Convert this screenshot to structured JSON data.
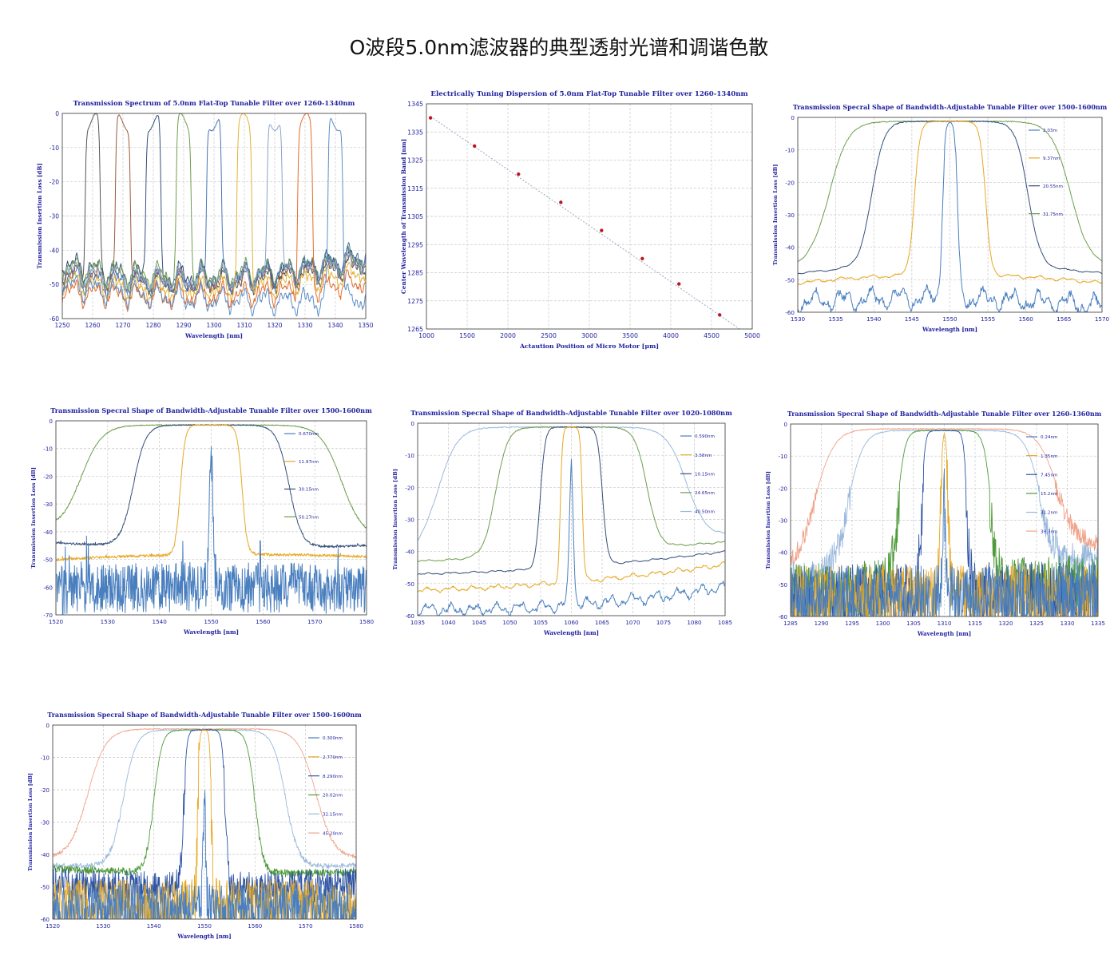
{
  "page": {
    "title": "O波段5.0nm滤波器的典型透射光谱和调谐色散"
  },
  "chart_data": [
    {
      "id": "c1",
      "type": "line",
      "title": "Transmission Spectrum of 5.0nm Flat-Top Tunable Filter over 1260-1340nm",
      "xlabel": "Wavelength [nm]",
      "ylabel": "Transmission Insertion Loss [dB]",
      "xlim": [
        1250,
        1350
      ],
      "ylim": [
        -60,
        0
      ],
      "xticks": [
        1250,
        1260,
        1270,
        1280,
        1290,
        1300,
        1310,
        1320,
        1330,
        1340,
        1350
      ],
      "yticks": [
        0,
        -10,
        -20,
        -30,
        -40,
        -50,
        -60
      ],
      "grid": true,
      "noise": "sinus",
      "series": [
        {
          "center": 1260,
          "fwhm": 5.0,
          "peak": -2.5,
          "floor_start": -46,
          "floor_mid": -54,
          "floor_end": -44,
          "color": "#555555"
        },
        {
          "center": 1270,
          "fwhm": 5.0,
          "peak": -2.5,
          "floor_start": -47,
          "floor_mid": -53,
          "floor_end": -43,
          "color": "#9b5a3c"
        },
        {
          "center": 1280,
          "fwhm": 5.0,
          "peak": -2.5,
          "floor_start": -44,
          "floor_mid": -52,
          "floor_end": -42,
          "color": "#35507a"
        },
        {
          "center": 1290,
          "fwhm": 5.0,
          "peak": -2.5,
          "floor_start": -45,
          "floor_mid": -51,
          "floor_end": -42,
          "color": "#6e9e4e"
        },
        {
          "center": 1300,
          "fwhm": 5.0,
          "peak": -2.5,
          "floor_start": -48,
          "floor_mid": -53,
          "floor_end": -41,
          "color": "#4a74b4"
        },
        {
          "center": 1310,
          "fwhm": 5.0,
          "peak": -2.5,
          "floor_start": -49,
          "floor_mid": -55,
          "floor_end": -46,
          "color": "#e3b236"
        },
        {
          "center": 1320,
          "fwhm": 5.0,
          "peak": -2.5,
          "floor_start": -46,
          "floor_mid": -52,
          "floor_end": -43,
          "color": "#8aa4c8"
        },
        {
          "center": 1330,
          "fwhm": 5.0,
          "peak": -2.5,
          "floor_start": -52,
          "floor_mid": -56,
          "floor_end": -49,
          "color": "#e46c2c"
        },
        {
          "center": 1340,
          "fwhm": 5.0,
          "peak": -2.5,
          "floor_start": -50,
          "floor_mid": -57,
          "floor_end": -54,
          "color": "#5d8fc6"
        }
      ]
    },
    {
      "id": "c2",
      "type": "scatter",
      "title": "Electrically Tuning Dispersion of 5.0nm Flat-Top Tunable Filter over 1260-1340nm",
      "xlabel": "Actaution Position of Micro Motor [μm]",
      "ylabel": "Center Wavelength of Transmission Band [nm]",
      "xlim": [
        1000,
        5000
      ],
      "ylim": [
        1265,
        1345
      ],
      "xticks": [
        1000,
        1500,
        2000,
        2500,
        3000,
        3500,
        4000,
        4500,
        5000
      ],
      "yticks": [
        1265,
        1275,
        1285,
        1295,
        1305,
        1315,
        1325,
        1335,
        1345
      ],
      "grid": true,
      "trendline": [
        [
          1050,
          1340.5
        ],
        [
          4880,
          1264.3
        ]
      ],
      "points": [
        [
          1050,
          1340
        ],
        [
          1590,
          1330
        ],
        [
          2130,
          1320
        ],
        [
          2650,
          1310
        ],
        [
          3150,
          1300
        ],
        [
          3650,
          1290
        ],
        [
          4100,
          1281
        ],
        [
          4600,
          1270
        ]
      ],
      "point_color": "#c0161f"
    },
    {
      "id": "c3",
      "type": "line",
      "title": "Transmission Specral Shape of Bandwidth-Adjustable Tunable Filter over 1500-1600nm",
      "xlabel": "Wavelength [nm]",
      "ylabel": "Transmission Insertion Loss [dB]",
      "xlim": [
        1530,
        1570
      ],
      "ylim": [
        -60,
        0
      ],
      "xticks": [
        1530,
        1535,
        1540,
        1545,
        1550,
        1555,
        1560,
        1565,
        1570
      ],
      "yticks": [
        0,
        -10,
        -20,
        -30,
        -40,
        -50,
        -60
      ],
      "grid": true,
      "noise": "sinus",
      "series": [
        {
          "name": "2.03m",
          "center": 1550,
          "fwhm": 2.03,
          "peak": -1.2,
          "floor_start": -57,
          "floor_mid": -54,
          "floor_end": -58,
          "color": "#4a7fbf",
          "noise_amp": 3.5
        },
        {
          "name": "9.37nm",
          "center": 1550,
          "fwhm": 9.37,
          "peak": -1.2,
          "floor_start": -51,
          "floor_mid": -46,
          "floor_end": -51,
          "color": "#e7a823",
          "noise_amp": 0.6
        },
        {
          "name": "20.55nm",
          "center": 1550,
          "fwhm": 20.55,
          "peak": -1.2,
          "floor_start": -48,
          "floor_mid": -43,
          "floor_end": -48,
          "color": "#35507a",
          "noise_amp": 0.3
        },
        {
          "name": "31.75nm",
          "center": 1550,
          "fwhm": 31.75,
          "peak": -1.2,
          "floor_start": -46,
          "floor_mid": -44,
          "floor_end": -46,
          "color": "#6e9e4e",
          "noise_amp": 0.3
        }
      ]
    },
    {
      "id": "c4",
      "type": "line",
      "title": "Transmission Specral Shape of Bandwidth-Adjustable Tunable Filter over 1500-1600nm",
      "xlabel": "Wavelength [nm]",
      "ylabel": "Transmission Insertion Loss [dB]",
      "xlim": [
        1520,
        1580
      ],
      "ylim": [
        -70,
        0
      ],
      "xticks": [
        1520,
        1530,
        1540,
        1550,
        1560,
        1570,
        1580
      ],
      "yticks": [
        0,
        -10,
        -20,
        -30,
        -40,
        -50,
        -60,
        -70
      ],
      "grid": true,
      "noise": "spiky",
      "series": [
        {
          "name": "0.670nm",
          "center": 1550,
          "fwhm": 0.67,
          "peak": -1.5,
          "floor_start": -61,
          "floor_mid": -59,
          "floor_end": -61,
          "color": "#4a7fbf",
          "noise_amp": 9
        },
        {
          "name": "11.97nm",
          "center": 1550,
          "fwhm": 11.97,
          "peak": -1.5,
          "floor_start": -50,
          "floor_mid": -47,
          "floor_end": -49,
          "color": "#e7a823",
          "noise_amp": 0.5
        },
        {
          "name": "30.15nm",
          "center": 1550,
          "fwhm": 30.15,
          "peak": -1.5,
          "floor_start": -44,
          "floor_mid": -47,
          "floor_end": -45,
          "color": "#35507a",
          "noise_amp": 0.4
        },
        {
          "name": "50.27nm",
          "center": 1550,
          "fwhm": 50.27,
          "peak": -1.5,
          "floor_start": -39,
          "floor_mid": -41,
          "floor_end": -42,
          "color": "#6e9e4e",
          "noise_amp": 0.3
        }
      ]
    },
    {
      "id": "c5",
      "type": "line",
      "title": "Transmission Specral Shape of Bandwidth-Adjustable Tunable Filter over 1020-1080nm",
      "xlabel": "Wavelength [nm]",
      "ylabel": "Transmission Insertion Loss [dB]",
      "xlim": [
        1035,
        1085
      ],
      "ylim": [
        -60,
        0
      ],
      "xticks": [
        1035,
        1040,
        1045,
        1050,
        1055,
        1060,
        1065,
        1070,
        1075,
        1080,
        1085
      ],
      "yticks": [
        0,
        -10,
        -20,
        -30,
        -40,
        -50,
        -60
      ],
      "grid": true,
      "noise": "sinus",
      "series": [
        {
          "name": "0.590nm",
          "center": 1060,
          "fwhm": 0.59,
          "peak": -1.2,
          "floor_start": -58,
          "floor_mid": -59,
          "floor_end": -51,
          "color": "#4a7fbf",
          "noise_amp": 2
        },
        {
          "name": "3.58nm",
          "center": 1060,
          "fwhm": 3.58,
          "peak": -1.2,
          "floor_start": -52,
          "floor_mid": -51,
          "floor_end": -44,
          "color": "#e7a823",
          "noise_amp": 0.8
        },
        {
          "name": "10.15nm",
          "center": 1060,
          "fwhm": 10.15,
          "peak": -1.2,
          "floor_start": -47,
          "floor_mid": -46,
          "floor_end": -40,
          "color": "#35507a",
          "noise_amp": 0.3
        },
        {
          "name": "24.65nm",
          "center": 1060,
          "fwhm": 24.65,
          "peak": -1.2,
          "floor_start": -43,
          "floor_mid": -41,
          "floor_end": -37,
          "color": "#6e9e4e",
          "noise_amp": 0.3
        },
        {
          "name": "40.50nm",
          "center": 1058.5,
          "fwhm": 40.5,
          "peak": -1.2,
          "floor_start": -41,
          "floor_mid": -40,
          "floor_end": -35,
          "color": "#9ab9dc",
          "noise_amp": 0.3
        }
      ]
    },
    {
      "id": "c6",
      "type": "line",
      "title": "Transmission Specral Shape of Bandwidth-Adjustable Tunable Filter over 1260-1360nm",
      "xlabel": "Wavelength [nm]",
      "ylabel": "Transmission Insertion Loss [dB]",
      "xlim": [
        1285,
        1335
      ],
      "ylim": [
        -60,
        0
      ],
      "xticks": [
        1285,
        1290,
        1295,
        1300,
        1305,
        1310,
        1315,
        1320,
        1325,
        1330,
        1335
      ],
      "yticks": [
        0,
        -10,
        -20,
        -30,
        -40,
        -50,
        -60
      ],
      "grid": true,
      "noise": "heavy",
      "series": [
        {
          "name": "0.24nm",
          "center": 1310,
          "fwhm": 0.24,
          "peak": -2.0,
          "floor_start": -50,
          "floor_mid": -50,
          "floor_end": -50,
          "color": "#4a7fbf",
          "noise_amp": 10
        },
        {
          "name": "1.35nm",
          "center": 1310,
          "fwhm": 1.35,
          "peak": -2.0,
          "floor_start": -50,
          "floor_mid": -50,
          "floor_end": -50,
          "color": "#e7a823",
          "noise_amp": 10
        },
        {
          "name": "7.45nm",
          "center": 1310,
          "fwhm": 7.45,
          "peak": -2.0,
          "floor_start": -50,
          "floor_mid": -49,
          "floor_end": -49,
          "color": "#2f55a4",
          "noise_amp": 10
        },
        {
          "name": "15.2nm",
          "center": 1310,
          "fwhm": 15.2,
          "peak": -2.0,
          "floor_start": -49,
          "floor_mid": -47,
          "floor_end": -46,
          "color": "#4f9a3a",
          "noise_amp": 9
        },
        {
          "name": "31.2nm",
          "center": 1310,
          "fwhm": 31.2,
          "peak": -2.0,
          "floor_start": -46,
          "floor_mid": -44,
          "floor_end": -40,
          "color": "#9ab9dc",
          "noise_amp": 5
        },
        {
          "name": "39.3nm",
          "center": 1308.7,
          "fwhm": 39.3,
          "peak": -1.5,
          "floor_start": -44,
          "floor_mid": -42,
          "floor_end": -36,
          "color": "#f0a48c",
          "noise_amp": 3
        }
      ]
    },
    {
      "id": "c7",
      "type": "line",
      "title": "Transmission Specral Shape of Bandwidth-Adjustable Tunable Filter over 1500-1600nm",
      "xlabel": "Wavelength [nm]",
      "ylabel": "Transmission Insertion Loss [dB]",
      "xlim": [
        1520,
        1580
      ],
      "ylim": [
        -60,
        0
      ],
      "xticks": [
        1520,
        1530,
        1540,
        1550,
        1560,
        1570,
        1580
      ],
      "yticks": [
        0,
        -10,
        -20,
        -30,
        -40,
        -50,
        -60
      ],
      "grid": true,
      "noise": "heavy",
      "series": [
        {
          "name": "0.300nm",
          "center": 1550,
          "fwhm": 0.3,
          "peak": -1.5,
          "floor_start": -54,
          "floor_mid": -54,
          "floor_end": -54,
          "color": "#4a7fbf",
          "noise_amp": 8
        },
        {
          "name": "2.770nm",
          "center": 1550,
          "fwhm": 2.77,
          "peak": -1.5,
          "floor_start": -53,
          "floor_mid": -53,
          "floor_end": -53,
          "color": "#e7a823",
          "noise_amp": 9
        },
        {
          "name": "8.290nm",
          "center": 1550,
          "fwhm": 8.29,
          "peak": -1.5,
          "floor_start": -47,
          "floor_mid": -50,
          "floor_end": -47,
          "color": "#2f55a4",
          "noise_amp": 5
        },
        {
          "name": "20.02nm",
          "center": 1550,
          "fwhm": 20.02,
          "peak": -1.5,
          "floor_start": -44,
          "floor_mid": -46,
          "floor_end": -45,
          "color": "#4f9a3a",
          "noise_amp": 1.2
        },
        {
          "name": "32.15nm",
          "center": 1550,
          "fwhm": 32.15,
          "peak": -1.5,
          "floor_start": -43,
          "floor_mid": -45,
          "floor_end": -43,
          "color": "#9ab9dc",
          "noise_amp": 0.8
        },
        {
          "name": "45.20nm",
          "center": 1549.5,
          "fwhm": 45.2,
          "peak": -1.2,
          "floor_start": -41,
          "floor_mid": -43,
          "floor_end": -41,
          "color": "#f0a48c",
          "noise_amp": 0.5
        }
      ]
    }
  ]
}
